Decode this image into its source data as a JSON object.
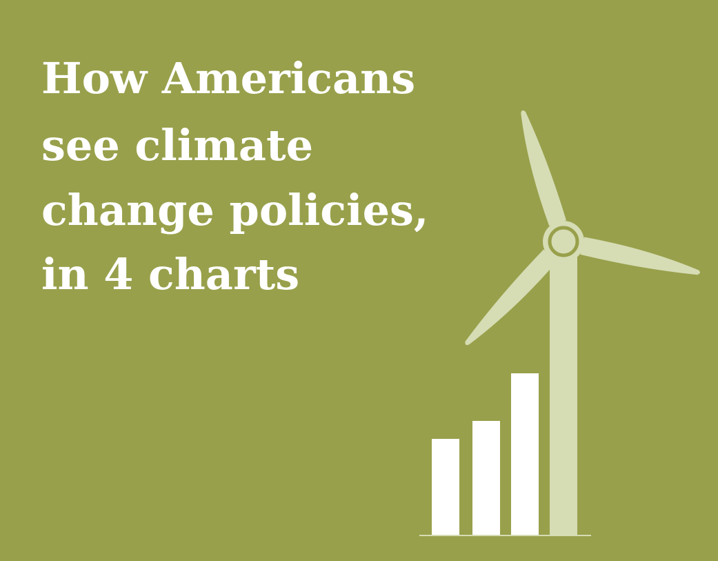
{
  "title_lines": [
    "How Americans",
    "see climate",
    "change policies,",
    "in 4 charts"
  ]
}
